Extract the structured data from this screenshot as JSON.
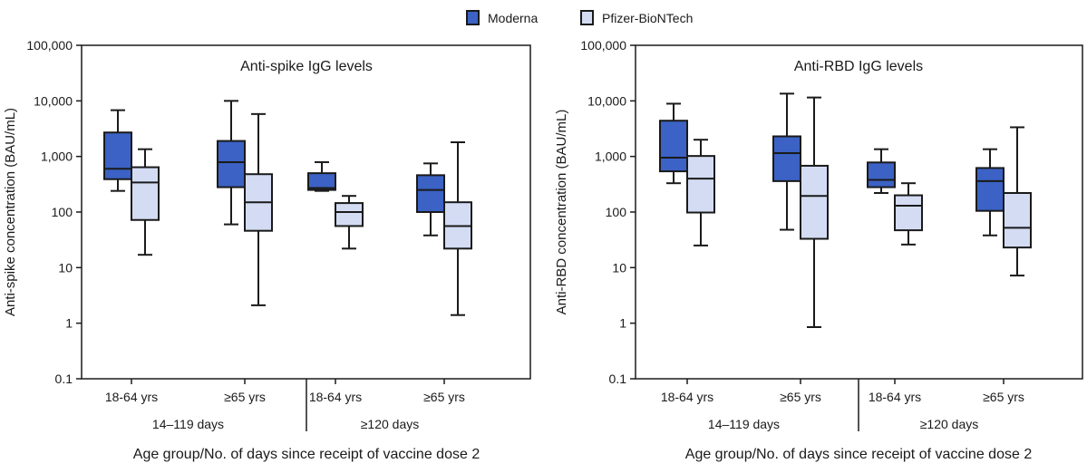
{
  "legend": {
    "items": [
      {
        "label": "Moderna",
        "color": "#3b62c4"
      },
      {
        "label": "Pfizer-BioNTech",
        "color": "#d3dcf3"
      }
    ]
  },
  "colors": {
    "moderna": "#3b62c4",
    "pfizer": "#d3dcf3",
    "stroke": "#1a1a1a"
  },
  "chart_data": [
    {
      "type": "boxplot",
      "title": "Anti-spike IgG levels",
      "ylabel": "Anti-spike concentration (BAU/mL)",
      "xlabel": "Age group/No. of days since receipt of vaccine dose 2",
      "yscale": "log",
      "ylim": [
        0.1,
        100000
      ],
      "yticks": [
        0.1,
        1,
        10,
        100,
        1000,
        10000,
        100000
      ],
      "ytick_labels": [
        "0.1",
        "1",
        "10",
        "100",
        "1,000",
        "10,000",
        "100,000"
      ],
      "categories": [
        "18-64 yrs",
        "≥65 yrs",
        "18-64 yrs",
        "≥65 yrs"
      ],
      "groups": [
        {
          "label": "14–119 days",
          "categories": [
            0,
            1
          ]
        },
        {
          "label": "≥120 days",
          "categories": [
            2,
            3
          ]
        }
      ],
      "series": [
        {
          "name": "Moderna",
          "boxes": [
            {
              "min": 240,
              "q1": 390,
              "median": 600,
              "q3": 2700,
              "max": 6800
            },
            {
              "min": 60,
              "q1": 280,
              "median": 790,
              "q3": 1900,
              "max": 10000
            },
            {
              "min": 240,
              "q1": 250,
              "median": 270,
              "q3": 500,
              "max": 790
            },
            {
              "min": 38,
              "q1": 100,
              "median": 250,
              "q3": 460,
              "max": 750
            }
          ]
        },
        {
          "name": "Pfizer-BioNTech",
          "boxes": [
            {
              "min": 17,
              "q1": 72,
              "median": 340,
              "q3": 640,
              "max": 1350
            },
            {
              "min": 2.1,
              "q1": 46,
              "median": 150,
              "q3": 480,
              "max": 5800
            },
            {
              "min": 22,
              "q1": 56,
              "median": 100,
              "q3": 145,
              "max": 195
            },
            {
              "min": 1.4,
              "q1": 22,
              "median": 56,
              "q3": 150,
              "max": 1800
            }
          ]
        }
      ]
    },
    {
      "type": "boxplot",
      "title": "Anti-RBD IgG levels",
      "ylabel": "Anti-RBD concentration (BAU/mL)",
      "xlabel": "Age group/No. of days since receipt of vaccine dose 2",
      "yscale": "log",
      "ylim": [
        0.1,
        100000
      ],
      "yticks": [
        0.1,
        1,
        10,
        100,
        1000,
        10000,
        100000
      ],
      "ytick_labels": [
        "0.1",
        "1",
        "10",
        "100",
        "1,000",
        "10,000",
        "100,000"
      ],
      "categories": [
        "18-64 yrs",
        "≥65 yrs",
        "18-64 yrs",
        "≥65 yrs"
      ],
      "groups": [
        {
          "label": "14–119 days",
          "categories": [
            0,
            1
          ]
        },
        {
          "label": "≥120 days",
          "categories": [
            2,
            3
          ]
        }
      ],
      "series": [
        {
          "name": "Moderna",
          "boxes": [
            {
              "min": 330,
              "q1": 540,
              "median": 950,
              "q3": 4400,
              "max": 8900
            },
            {
              "min": 48,
              "q1": 360,
              "median": 1150,
              "q3": 2300,
              "max": 13500
            },
            {
              "min": 220,
              "q1": 280,
              "median": 380,
              "q3": 780,
              "max": 1350
            },
            {
              "min": 38,
              "q1": 105,
              "median": 360,
              "q3": 620,
              "max": 1350
            }
          ]
        },
        {
          "name": "Pfizer-BioNTech",
          "boxes": [
            {
              "min": 25,
              "q1": 98,
              "median": 400,
              "q3": 1020,
              "max": 2000
            },
            {
              "min": 0.85,
              "q1": 33,
              "median": 195,
              "q3": 680,
              "max": 11500
            },
            {
              "min": 26,
              "q1": 47,
              "median": 130,
              "q3": 200,
              "max": 330
            },
            {
              "min": 7.2,
              "q1": 23,
              "median": 52,
              "q3": 220,
              "max": 3350
            }
          ]
        }
      ]
    }
  ]
}
